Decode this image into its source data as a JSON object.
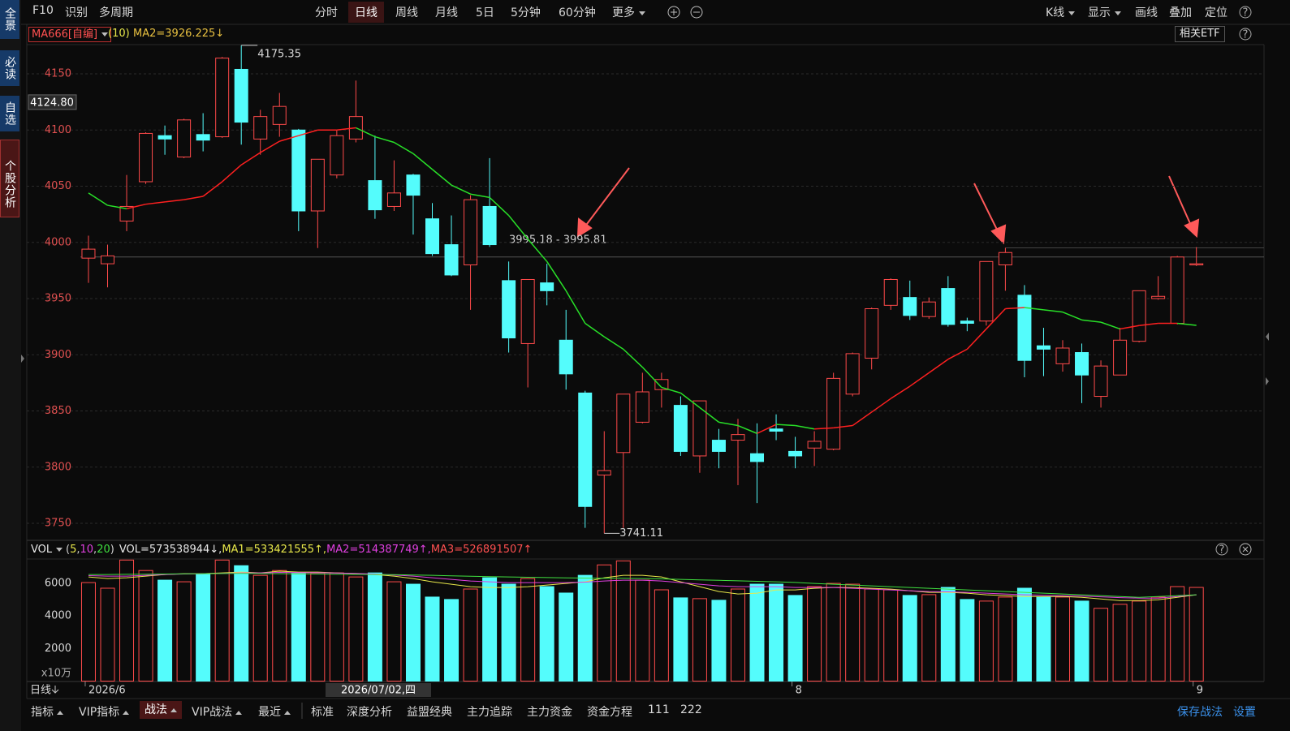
{
  "sidebar": [
    "全景",
    "必读",
    "自选",
    "个股分析"
  ],
  "top_nav": {
    "left": [
      "F10",
      "识别",
      "多周期"
    ],
    "periods": [
      "分时",
      "日线",
      "周线",
      "月线",
      "5日",
      "5分钟",
      "60分钟",
      "更多"
    ],
    "selected_period": 1,
    "right": [
      "K线",
      "显示",
      "画线",
      "叠加",
      "定位"
    ],
    "help": "?"
  },
  "price_header": {
    "indicator": "MA666[自编]",
    "param": "(10)",
    "value": "MA2=3926.225↓",
    "etf": "相关ETF",
    "help": "?"
  },
  "vol_header": {
    "name": "VOL",
    "parts": [
      {
        "text": "(",
        "color": "#d0d0d0"
      },
      {
        "text": "5",
        "color": "#e8e84a"
      },
      {
        "text": ",",
        "color": "#d0d0d0"
      },
      {
        "text": "10",
        "color": "#e040e0"
      },
      {
        "text": ",",
        "color": "#d0d0d0"
      },
      {
        "text": "20",
        "color": "#40e040"
      },
      {
        "text": ")",
        "color": "#d0d0d0"
      },
      {
        "text": "VOL=573538944↓,",
        "color": "#e8e8e8"
      },
      {
        "text": "MA1=533421555↑,",
        "color": "#e8e84a"
      },
      {
        "text": "MA2=514387749↑,",
        "color": "#e040e0"
      },
      {
        "text": "MA3=526891507↑",
        "color": "#ff5050"
      }
    ],
    "help": "?"
  },
  "date_row": {
    "period": "日线",
    "crosshair_date": "2026/07/02,四"
  },
  "bottom_bar": {
    "tabs": [
      "指标",
      "VIP指标",
      "战法",
      "VIP战法",
      "最近"
    ],
    "selected_tab": 2,
    "items": [
      "标准",
      "深度分析",
      "益盟经典",
      "主力追踪",
      "主力资金",
      "资金方程",
      "111",
      "222"
    ],
    "right": [
      "保存战法",
      "设置"
    ]
  },
  "chart_data": [
    {
      "type": "candlestick",
      "categories": [
        "2026/6",
        null,
        null,
        null,
        null,
        null,
        null,
        null,
        null,
        null,
        null,
        null,
        null,
        null,
        null,
        null,
        null,
        null,
        null,
        null,
        null,
        null,
        null,
        null,
        null,
        null,
        null,
        null,
        null,
        null,
        null,
        null,
        null,
        null,
        null,
        null,
        null,
        "8",
        null,
        null,
        null,
        null,
        null,
        null,
        null,
        null,
        null,
        null,
        null,
        null,
        null,
        null,
        null,
        null,
        null,
        null,
        null,
        null,
        "9"
      ],
      "candles": {
        "open": [
          3986,
          3981,
          4019,
          4054,
          4095,
          4076,
          4096,
          4094,
          4154,
          4092,
          4105,
          4100,
          4028,
          4060,
          4092,
          4055,
          4032,
          4060,
          4021,
          3998,
          3980,
          4032,
          3966,
          3910,
          3964,
          3913,
          3866,
          3793,
          3813,
          3840,
          3869,
          3855,
          3810,
          3824,
          3824,
          3812,
          3834,
          3814,
          3817,
          3816,
          3865,
          3897,
          3944,
          3951,
          3934,
          3959,
          3930,
          3930,
          3980,
          3953,
          3908,
          3892,
          3902,
          3863,
          3882,
          3912,
          3950,
          3928,
          3980
        ],
        "high": [
          4006,
          3998,
          4060,
          4098,
          4104,
          4110,
          4115,
          4165,
          4175.35,
          4118,
          4133,
          4101,
          4074,
          4100,
          4144,
          4095,
          4073,
          4061,
          4035,
          4024,
          4042,
          4075,
          3983,
          3967,
          3981,
          3940,
          3868,
          3832,
          3865,
          3884,
          3884,
          3863,
          3859,
          3834,
          3843,
          3839,
          3847,
          3827,
          3832,
          3884,
          3902,
          3942,
          3968,
          3966,
          3951,
          3970,
          3933,
          3983,
          3995.18,
          3962,
          3924,
          3913,
          3910,
          3895,
          3924,
          3957,
          3970,
          3988,
          3995.81
        ],
        "low": [
          3964,
          3960,
          4010,
          4052,
          4078,
          4075,
          4081,
          4093,
          4087,
          4078,
          4094,
          4010,
          3995,
          4057,
          4089,
          4021,
          4028,
          4007,
          3988,
          3970,
          3940,
          3996,
          3902,
          3871,
          3944,
          3869,
          3746,
          3741.11,
          3746,
          3839,
          3853,
          3810,
          3795,
          3799,
          3784,
          3768,
          3824,
          3799,
          3801,
          3815,
          3863,
          3887,
          3940,
          3931,
          3932,
          3925,
          3921,
          3926,
          3957,
          3880,
          3881,
          3885,
          3857,
          3853,
          3882,
          3911,
          3949,
          3927,
          3979
        ],
        "close": [
          3994,
          3988,
          4032,
          4097,
          4092,
          4109,
          4091,
          4164,
          4107,
          4112,
          4121,
          4028,
          4074,
          4095,
          4112,
          4029,
          4044,
          4042,
          3990,
          3971,
          4038,
          3998,
          3915,
          3967,
          3957,
          3883,
          3765,
          3797,
          3865,
          3867,
          3878,
          3814,
          3859,
          3814,
          3829,
          3805,
          3832,
          3810,
          3823,
          3879,
          3901,
          3941,
          3967,
          3935,
          3947,
          3927,
          3928,
          3983,
          3991,
          3895,
          3905,
          3906,
          3882,
          3890,
          3913,
          3957,
          3952,
          3987,
          3981
        ]
      },
      "up_color": "#ff4a4a",
      "down_color": "#54fcfc",
      "ma": {
        "name": "MA2",
        "up_color": "#ff2020",
        "down_color": "#28e028",
        "values": [
          4044,
          4033,
          4030,
          4034,
          4036,
          4038,
          4041,
          4054,
          4069,
          4080,
          4090,
          4095,
          4100,
          4100,
          4102,
          4094,
          4089,
          4079,
          4065,
          4051,
          4043,
          4040,
          4024,
          4003,
          3983,
          3957,
          3928,
          3916,
          3905,
          3889,
          3871,
          3866,
          3853,
          3840,
          3837,
          3830,
          3838,
          3837,
          3834,
          3835,
          3837,
          3849,
          3861,
          3872,
          3884,
          3896,
          3905,
          3923,
          3941,
          3942,
          3940,
          3938,
          3931,
          3929,
          3923,
          3926,
          3928,
          3928,
          3926.225
        ]
      },
      "ylim": [
        3735.6,
        4176
      ],
      "yticks": [
        3750,
        3800,
        3850,
        3900,
        3950,
        4000,
        4050,
        4100,
        4150
      ],
      "grid": true,
      "price_line": 3987,
      "crosshair_value": {
        "value": 4124.8,
        "label": "4124.80"
      },
      "range_label": "3995.18 - 3995.81"
    },
    {
      "type": "bar",
      "values": [
        6052,
        5706,
        7435,
        6793,
        6200,
        6101,
        6595,
        7435,
        7089,
        6496,
        6793,
        6644,
        6644,
        6644,
        6397,
        6644,
        6101,
        5953,
        5162,
        5014,
        5656,
        6348,
        5953,
        6299,
        5805,
        5409,
        6496,
        7138,
        7385,
        6200,
        5607,
        5113,
        5064,
        4965,
        5656,
        5953,
        5953,
        5261,
        5805,
        6002,
        5953,
        5656,
        5607,
        5261,
        5311,
        5755,
        5014,
        4915,
        5162,
        5706,
        5162,
        5162,
        4915,
        4471,
        4718,
        4915,
        5162,
        5805,
        5755
      ],
      "series": [
        {
          "name": "MA1",
          "color": "#e8e84a",
          "values": [
            6400,
            6300,
            6350,
            6450,
            6550,
            6600,
            6600,
            6650,
            6700,
            6650,
            6750,
            6700,
            6700,
            6650,
            6600,
            6550,
            6450,
            6300,
            6100,
            5950,
            5800,
            5750,
            5750,
            5800,
            5900,
            6000,
            6100,
            6350,
            6500,
            6500,
            6400,
            6100,
            5800,
            5500,
            5350,
            5400,
            5600,
            5600,
            5700,
            5750,
            5750,
            5700,
            5650,
            5550,
            5450,
            5450,
            5400,
            5300,
            5250,
            5200,
            5200,
            5200,
            5150,
            5050,
            4950,
            4950,
            5000,
            5150,
            5300
          ]
        },
        {
          "name": "MA2",
          "color": "#e040e0",
          "values": [
            6480,
            6450,
            6450,
            6500,
            6550,
            6580,
            6600,
            6620,
            6650,
            6650,
            6680,
            6670,
            6660,
            6640,
            6620,
            6580,
            6520,
            6450,
            6350,
            6250,
            6150,
            6100,
            6050,
            6050,
            6050,
            6050,
            6080,
            6150,
            6200,
            6200,
            6150,
            6050,
            5950,
            5850,
            5800,
            5800,
            5800,
            5750,
            5750,
            5750,
            5700,
            5650,
            5600,
            5550,
            5500,
            5480,
            5450,
            5400,
            5350,
            5300,
            5270,
            5250,
            5220,
            5180,
            5130,
            5100,
            5100,
            5200,
            5300
          ]
        },
        {
          "name": "MA3",
          "color": "#40e040",
          "values": [
            6550,
            6550,
            6560,
            6570,
            6580,
            6590,
            6600,
            6610,
            6620,
            6610,
            6600,
            6590,
            6580,
            6570,
            6560,
            6550,
            6540,
            6520,
            6500,
            6470,
            6440,
            6420,
            6400,
            6380,
            6360,
            6340,
            6330,
            6320,
            6320,
            6300,
            6280,
            6250,
            6220,
            6190,
            6160,
            6130,
            6100,
            6060,
            6000,
            5950,
            5900,
            5850,
            5800,
            5750,
            5700,
            5650,
            5600,
            5550,
            5500,
            5450,
            5400,
            5350,
            5300,
            5250,
            5200,
            5150,
            5200,
            5250,
            5300
          ]
        }
      ],
      "ylim": [
        0,
        7450
      ],
      "yticks": [
        2000,
        4000,
        6000
      ],
      "unit_label": "x10万",
      "grid": false
    }
  ]
}
